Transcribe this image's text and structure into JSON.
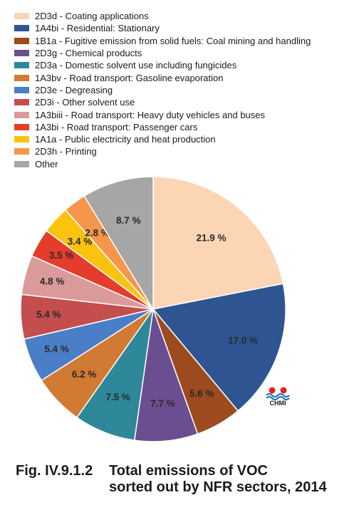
{
  "chart_data": {
    "type": "pie",
    "slices": [
      {
        "label": "2D3d - Coating applications",
        "value": 21.9,
        "value_label": "21.9 %",
        "color": "#fcd5b5"
      },
      {
        "label": "1A4bi - Residential: Stationary",
        "value": 17.0,
        "value_label": "17.0 %",
        "color": "#2e5591"
      },
      {
        "label": "1B1a - Fugitive emission from solid fuels: Coal mining and handling",
        "value": 5.6,
        "value_label": "5.6 %",
        "color": "#9c4a1e"
      },
      {
        "label": "2D3g - Chemical products",
        "value": 7.7,
        "value_label": "7.7 %",
        "color": "#6b4e90"
      },
      {
        "label": "2D3a - Domestic solvent use including fungicides",
        "value": 7.5,
        "value_label": "7.5 %",
        "color": "#2e8899"
      },
      {
        "label": "1A3bv - Road transport: Gasoline evaporation",
        "value": 6.2,
        "value_label": "6.2 %",
        "color": "#d17a34"
      },
      {
        "label": "2D3e - Degreasing",
        "value": 5.4,
        "value_label": "5.4 %",
        "color": "#4a7ec7"
      },
      {
        "label": "2D3i - Other solvent use",
        "value": 5.4,
        "value_label": "5.4 %",
        "color": "#c44d4d"
      },
      {
        "label": "1A3biii - Road transport: Heavy duty vehicles and buses",
        "value": 4.8,
        "value_label": "4.8 %",
        "color": "#db9a9a"
      },
      {
        "label": "1A3bi - Road transport: Passenger cars",
        "value": 3.5,
        "value_label": "3.5 %",
        "color": "#e43d2c"
      },
      {
        "label": "1A1a - Public electricity and heat production",
        "value": 3.4,
        "value_label": "3.4 %",
        "color": "#fbc30d"
      },
      {
        "label": "2D3h - Printing",
        "value": 2.8,
        "value_label": "2.8 %",
        "color": "#f5964a"
      },
      {
        "label": "Other",
        "value": 8.7,
        "value_label": "8.7 %",
        "color": "#a6a6a6"
      }
    ],
    "legend_position": "top-left",
    "start_angle": "12 o'clock, clockwise"
  },
  "logo": {
    "text": "CHMI",
    "colors": [
      "#e2231a",
      "#1a6fb5"
    ]
  },
  "caption": {
    "number": "Fig. IV.9.1.2",
    "line1": "Total emissions of VOC",
    "line2": "sorted out by NFR sectors, 2014"
  }
}
